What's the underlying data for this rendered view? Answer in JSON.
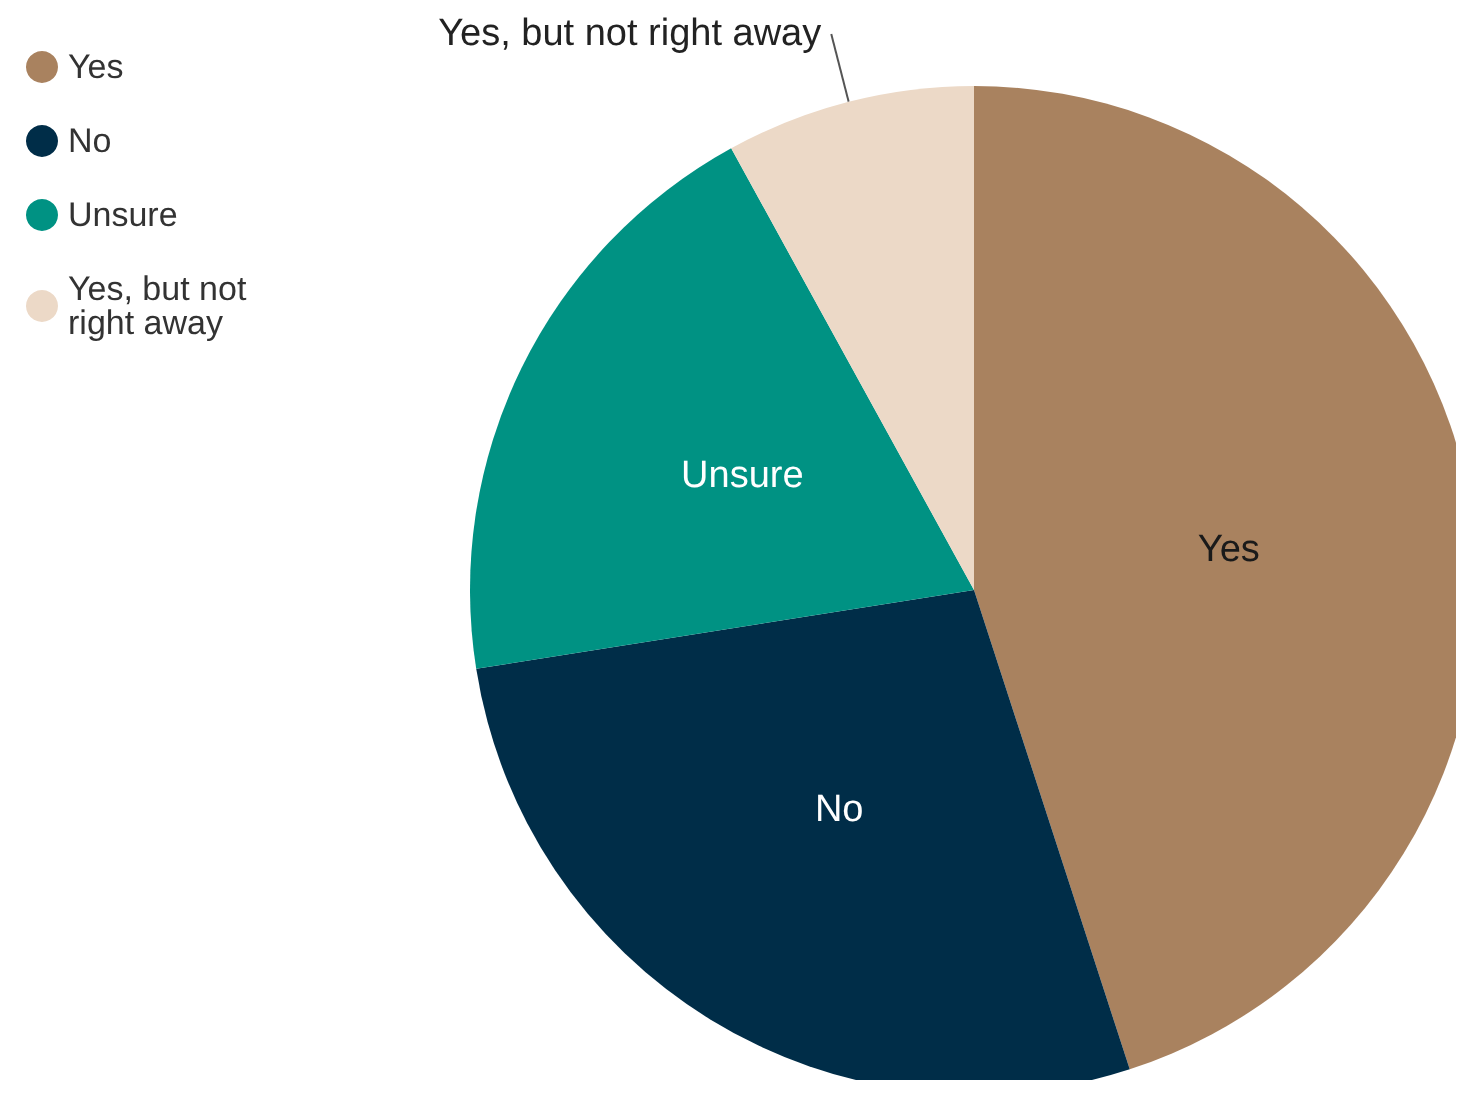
{
  "chart_data": {
    "type": "pie",
    "categories": [
      "Yes",
      "No",
      "Unsure",
      "Yes, but not right away"
    ],
    "values": [
      45,
      27.5,
      19.5,
      8
    ],
    "colors": [
      "#a9825f",
      "#002d48",
      "#009283",
      "#ecd9c7"
    ],
    "legend": "top left"
  }
}
